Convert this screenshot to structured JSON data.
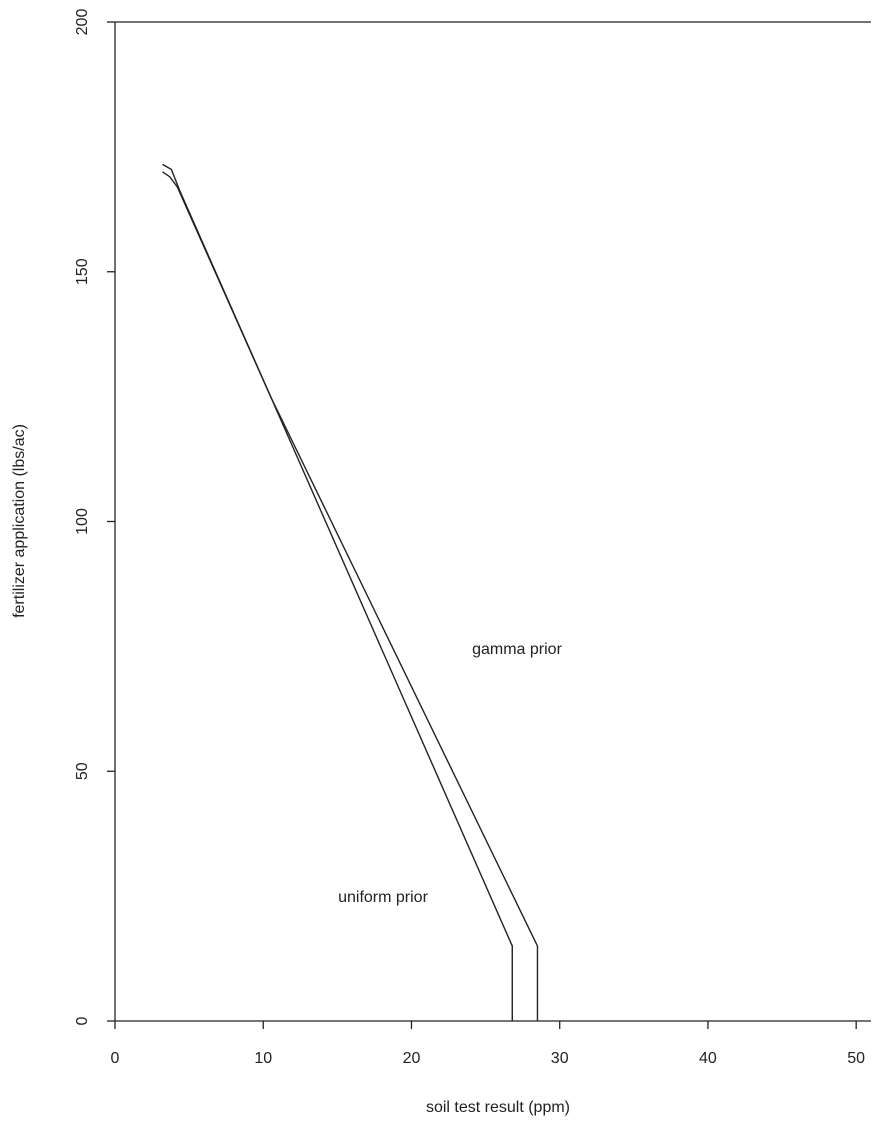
{
  "chart_data": {
    "type": "line",
    "x_label": "soil test result (ppm)",
    "y_label": "fertilizer application (lbs/ac)",
    "annotations": [
      "gamma prior",
      "uniform prior"
    ],
    "xlim": [
      0,
      51
    ],
    "ylim": [
      0,
      200
    ],
    "xticks": [
      0,
      10,
      20,
      30,
      40,
      50
    ],
    "yticks": [
      0,
      50,
      100,
      150,
      200
    ],
    "series": [
      {
        "name": "uniform prior",
        "color": "#222222",
        "x": [
          3.2,
          3.7,
          4.2,
          10.5,
          26.8,
          26.8
        ],
        "values": [
          170,
          169,
          167,
          125,
          15,
          0
        ]
      },
      {
        "name": "gamma prior",
        "color": "#222222",
        "x": [
          3.2,
          3.8,
          4.4,
          10.5,
          28.5,
          28.5
        ],
        "values": [
          171.5,
          170.5,
          166,
          125,
          15,
          0
        ]
      }
    ]
  }
}
